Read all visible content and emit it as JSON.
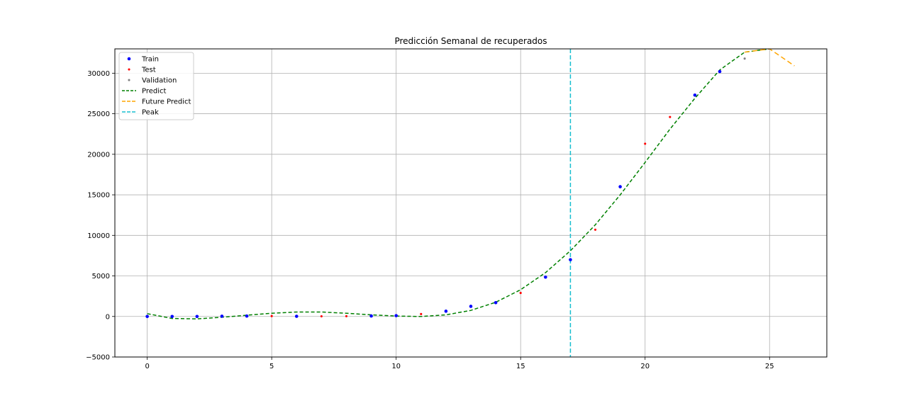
{
  "chart_data": {
    "type": "line",
    "title": "Predicción Semanal de recuperados",
    "xlabel": "",
    "ylabel": "",
    "xlim": [
      -1.3,
      27.3
    ],
    "ylim": [
      -5000,
      33000
    ],
    "xticks": [
      0,
      5,
      10,
      15,
      20,
      25
    ],
    "yticks": [
      -5000,
      0,
      5000,
      10000,
      15000,
      20000,
      25000,
      30000
    ],
    "ytick_labels": [
      "−5000",
      "0",
      "5000",
      "10000",
      "15000",
      "20000",
      "25000",
      "30000"
    ],
    "grid": true,
    "legend_position": "top-left",
    "series": [
      {
        "name": "Train",
        "kind": "scatter",
        "color": "#0000ff",
        "marker_size": 4,
        "points": [
          [
            0,
            0
          ],
          [
            1,
            0
          ],
          [
            2,
            0
          ],
          [
            3,
            30
          ],
          [
            4,
            50
          ],
          [
            6,
            20
          ],
          [
            9,
            60
          ],
          [
            10,
            100
          ],
          [
            12,
            650
          ],
          [
            13,
            1250
          ],
          [
            14,
            1700
          ],
          [
            16,
            4850
          ],
          [
            17,
            7000
          ],
          [
            19,
            16000
          ],
          [
            22,
            27300
          ],
          [
            23,
            30200
          ]
        ]
      },
      {
        "name": "Test",
        "kind": "scatter",
        "color": "#ff0000",
        "marker_size": 2.5,
        "points": [
          [
            5,
            50
          ],
          [
            7,
            20
          ],
          [
            8,
            30
          ],
          [
            11,
            300
          ],
          [
            15,
            2900
          ],
          [
            18,
            10700
          ],
          [
            20,
            21300
          ],
          [
            21,
            24600
          ]
        ]
      },
      {
        "name": "Validation",
        "kind": "scatter",
        "color": "#808080",
        "marker_size": 2.5,
        "points": [
          [
            24,
            31800
          ]
        ]
      },
      {
        "name": "Predict",
        "kind": "line",
        "color": "#008000",
        "dash": "5,3",
        "points": [
          [
            0,
            350
          ],
          [
            1,
            -250
          ],
          [
            2,
            -300
          ],
          [
            3,
            -100
          ],
          [
            4,
            150
          ],
          [
            5,
            400
          ],
          [
            6,
            550
          ],
          [
            7,
            550
          ],
          [
            8,
            400
          ],
          [
            9,
            200
          ],
          [
            10,
            50
          ],
          [
            11,
            0
          ],
          [
            12,
            200
          ],
          [
            13,
            750
          ],
          [
            14,
            1750
          ],
          [
            15,
            3300
          ],
          [
            16,
            5400
          ],
          [
            17,
            8100
          ],
          [
            18,
            11300
          ],
          [
            19,
            15000
          ],
          [
            20,
            19000
          ],
          [
            21,
            23100
          ],
          [
            22,
            26900
          ],
          [
            23,
            30400
          ],
          [
            24,
            32600
          ],
          [
            25,
            33000
          ]
        ]
      },
      {
        "name": "Future Predict",
        "kind": "line",
        "color": "#ffa500",
        "dash": "7,4",
        "points": [
          [
            24,
            32600
          ],
          [
            25,
            33000
          ],
          [
            26,
            30900
          ]
        ]
      },
      {
        "name": "Peak",
        "kind": "vline",
        "color": "#17becf",
        "dash": "6,3",
        "x": 17
      }
    ]
  }
}
